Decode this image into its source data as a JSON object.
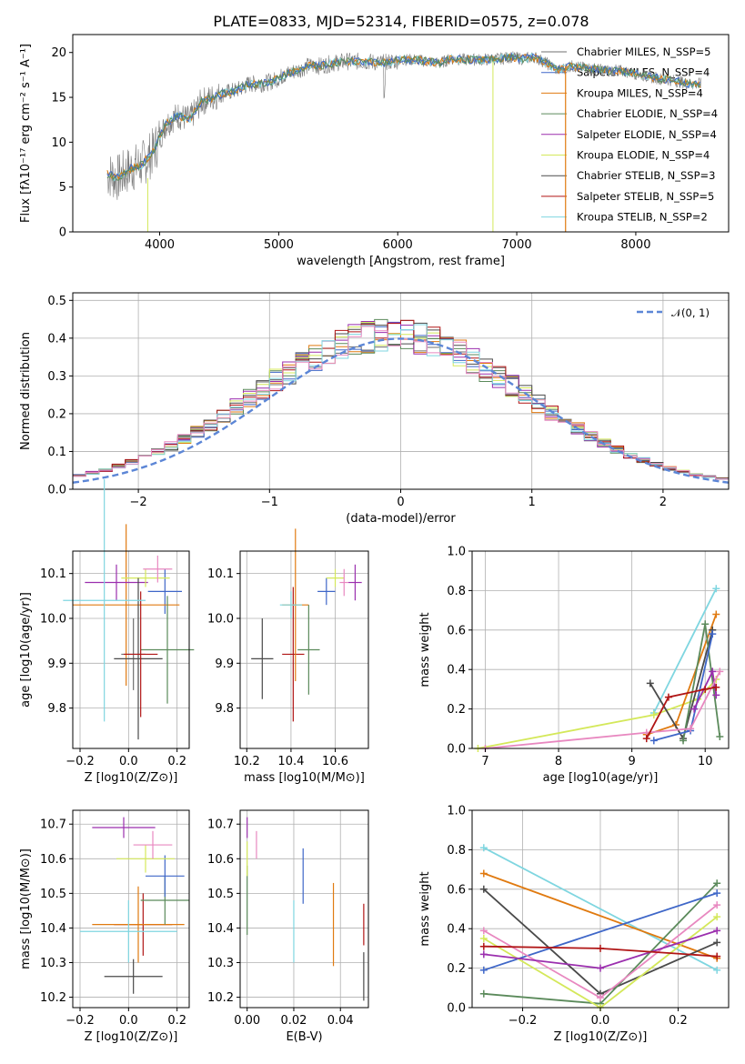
{
  "title": "PLATE=0833, MJD=52314, FIBERID=0575, z=0.078",
  "colors": {
    "Chabrier MILES": "#6f6f6f",
    "Salpeter MILES": "#3f67c8",
    "Kroupa MILES": "#e07a10",
    "Chabrier ELODIE": "#5b8a5b",
    "Salpeter ELODIE": "#9b2fae",
    "Kroupa ELODIE": "#d4e85a",
    "Chabrier STELIB": "#4a4a4a",
    "Salpeter STELIB": "#b01515",
    "Kroupa STELIB": "#7fd6e0",
    "pink": "#e888c0"
  },
  "chart_data": [
    {
      "type": "line",
      "title": "PLATE=0833, MJD=52314, FIBERID=0575, z=0.078",
      "xlabel": "wavelength [Angstrom, rest frame]",
      "ylabel": "Flux [fλ10⁻¹⁷ erg cm⁻² s⁻¹ A⁻¹]",
      "xlim": [
        3270,
        8780
      ],
      "ylim": [
        0,
        22
      ],
      "xticks": [
        "4000",
        "5000",
        "6000",
        "7000",
        "8000"
      ],
      "yticks": [
        "0",
        "5",
        "10",
        "15",
        "20"
      ],
      "legend": "right",
      "legend_entries": [
        "Chabrier MILES, N_SSP=5",
        "Salpeter MILES, N_SSP=4",
        "Kroupa MILES, N_SSP=4",
        "Chabrier ELODIE, N_SSP=4",
        "Salpeter ELODIE, N_SSP=4",
        "Kroupa ELODIE, N_SSP=4",
        "Chabrier STELIB, N_SSP=3",
        "Salpeter STELIB, N_SSP=5",
        "Kroupa STELIB, N_SSP=2"
      ],
      "spectrum": {
        "x": [
          3550,
          3650,
          3750,
          3850,
          3950,
          4050,
          4150,
          4250,
          4350,
          4450,
          4550,
          4650,
          4750,
          4850,
          4950,
          5050,
          5150,
          5250,
          5350,
          5450,
          5550,
          5650,
          5750,
          5850,
          5950,
          6050,
          6150,
          6250,
          6350,
          6450,
          6550,
          6650,
          6750,
          6850,
          6950,
          7050,
          7150,
          7250,
          7350,
          7450,
          7550,
          7650,
          7750,
          7850,
          7950,
          8050,
          8150,
          8250,
          8350,
          8450,
          8550
        ],
        "y": [
          6.5,
          6.0,
          7.0,
          7.5,
          9.0,
          12.0,
          13.0,
          12.5,
          14.5,
          15.0,
          15.5,
          15.8,
          16.5,
          16.5,
          16.8,
          17.5,
          18.0,
          18.5,
          18.5,
          18.8,
          19.0,
          19.0,
          19.0,
          18.8,
          19.0,
          19.2,
          19.2,
          19.0,
          18.8,
          19.3,
          19.2,
          19.2,
          19.2,
          19.3,
          19.5,
          19.3,
          19.5,
          18.8,
          18.0,
          18.5,
          18.3,
          18.2,
          18.0,
          18.0,
          17.8,
          17.5,
          17.2,
          17.0,
          16.8,
          16.5,
          16.5
        ]
      }
    },
    {
      "type": "bar",
      "xlabel": "(data-model)/error",
      "ylabel": "Normed distribution",
      "xlim": [
        -2.5,
        2.5
      ],
      "ylim": [
        0,
        0.52
      ],
      "xticks": [
        "−2",
        "−1",
        "0",
        "1",
        "2"
      ],
      "yticks": [
        "0.0",
        "0.1",
        "0.2",
        "0.3",
        "0.4",
        "0.5"
      ],
      "legend": "top-right",
      "reference_label": "𝒩(0, 1)",
      "bin_width": 0.1
    },
    {
      "type": "scatter",
      "xlabel": "Z [log10(Z/Z⊙)]",
      "ylabel": "age [log10(age/yr)]",
      "xlim": [
        -0.23,
        0.25
      ],
      "ylim": [
        9.71,
        10.15
      ],
      "xticks": [
        "−0.2",
        "0.0",
        "0.2"
      ],
      "yticks": [
        "9.8",
        "9.9",
        "10.0",
        "10.1"
      ],
      "points": [
        {
          "series": "Chabrier MILES",
          "x": 0.02,
          "xerr": 0.05,
          "y": 9.92,
          "yerr": 0.08
        },
        {
          "series": "Salpeter MILES",
          "x": 0.15,
          "xerr": 0.07,
          "y": 10.06,
          "yerr": 0.05
        },
        {
          "series": "Kroupa MILES",
          "x": -0.01,
          "xerr": 0.22,
          "y": 10.03,
          "yerr": 0.18
        },
        {
          "series": "Chabrier ELODIE",
          "x": 0.16,
          "xerr": 0.11,
          "y": 9.93,
          "yerr": 0.12
        },
        {
          "series": "Salpeter ELODIE",
          "x": -0.05,
          "xerr": 0.13,
          "y": 10.08,
          "yerr": 0.04
        },
        {
          "series": "Kroupa ELODIE",
          "x": 0.07,
          "xerr": 0.1,
          "y": 10.09,
          "yerr": 0.02
        },
        {
          "series": "Chabrier STELIB",
          "x": 0.04,
          "xerr": 0.1,
          "y": 9.91,
          "yerr": 0.18
        },
        {
          "series": "Salpeter STELIB",
          "x": 0.05,
          "xerr": 0.07,
          "y": 9.92,
          "yerr": 0.14
        },
        {
          "series": "Kroupa STELIB",
          "x": -0.1,
          "xerr": 0.17,
          "y": 10.04,
          "yerr": 0.27
        },
        {
          "series": "pink",
          "x": 0.12,
          "xerr": 0.06,
          "y": 10.11,
          "yerr": 0.03
        }
      ]
    },
    {
      "type": "scatter",
      "xlabel": "mass [log10(M/M⊙)]",
      "ylabel": "",
      "xlim": [
        10.17,
        10.75
      ],
      "ylim": [
        9.71,
        10.15
      ],
      "xticks": [
        "10.2",
        "10.4",
        "10.6"
      ],
      "yticks": [
        "9.8",
        "9.9",
        "10.0",
        "10.1"
      ],
      "points": [
        {
          "series": "Chabrier STELIB",
          "x": 10.27,
          "xerr": 0.05,
          "y": 9.91,
          "yerr": 0.09
        },
        {
          "series": "Salpeter STELIB",
          "x": 10.41,
          "xerr": 0.05,
          "y": 9.92,
          "yerr": 0.15
        },
        {
          "series": "Kroupa MILES",
          "x": 10.42,
          "xerr": 0.06,
          "y": 10.03,
          "yerr": 0.17
        },
        {
          "series": "Chabrier ELODIE",
          "x": 10.48,
          "xerr": 0.05,
          "y": 9.93,
          "yerr": 0.1
        },
        {
          "series": "Kroupa STELIB",
          "x": 10.4,
          "xerr": 0.05,
          "y": 10.03,
          "yerr": 0.03
        },
        {
          "series": "Salpeter MILES",
          "x": 10.56,
          "xerr": 0.04,
          "y": 10.06,
          "yerr": 0.03
        },
        {
          "series": "Kroupa ELODIE",
          "x": 10.6,
          "xerr": 0.04,
          "y": 10.09,
          "yerr": 0.02
        },
        {
          "series": "pink",
          "x": 10.64,
          "xerr": 0.02,
          "y": 10.08,
          "yerr": 0.03
        },
        {
          "series": "Salpeter ELODIE",
          "x": 10.69,
          "xerr": 0.03,
          "y": 10.08,
          "yerr": 0.04
        }
      ]
    },
    {
      "type": "line",
      "xlabel": "age [log10(age/yr)]",
      "ylabel": "mass weight",
      "xlim": [
        6.82,
        10.32
      ],
      "ylim": [
        0,
        1
      ],
      "xticks": [
        "7",
        "8",
        "9",
        "10"
      ],
      "yticks": [
        "0.0",
        "0.2",
        "0.4",
        "0.6",
        "0.8",
        "1.0"
      ],
      "series": [
        {
          "name": "Kroupa STELIB",
          "x": [
            9.3,
            10.15
          ],
          "y": [
            0.18,
            0.81
          ]
        },
        {
          "name": "Kroupa ELODIE",
          "x": [
            6.9,
            9.3,
            9.9,
            10.15
          ],
          "y": [
            0.0,
            0.17,
            0.25,
            0.35
          ]
        },
        {
          "name": "Kroupa MILES",
          "x": [
            9.2,
            9.6,
            10.15
          ],
          "y": [
            0.07,
            0.12,
            0.68
          ]
        },
        {
          "name": "Chabrier STELIB",
          "x": [
            9.25,
            9.7,
            10.1
          ],
          "y": [
            0.33,
            0.05,
            0.6
          ]
        },
        {
          "name": "Chabrier ELODIE",
          "x": [
            9.7,
            10.0,
            10.2
          ],
          "y": [
            0.04,
            0.63,
            0.06
          ]
        },
        {
          "name": "Salpeter MILES",
          "x": [
            9.3,
            9.8,
            10.1
          ],
          "y": [
            0.04,
            0.09,
            0.58
          ]
        },
        {
          "name": "Salpeter ELODIE",
          "x": [
            9.85,
            10.1,
            10.15
          ],
          "y": [
            0.2,
            0.39,
            0.27
          ]
        },
        {
          "name": "pink",
          "x": [
            7.0,
            9.2,
            9.8,
            10.2
          ],
          "y": [
            0.0,
            0.08,
            0.1,
            0.39
          ]
        },
        {
          "name": "Salpeter STELIB",
          "x": [
            9.2,
            9.5,
            10.0,
            10.15
          ],
          "y": [
            0.05,
            0.26,
            0.3,
            0.31
          ]
        }
      ]
    },
    {
      "type": "scatter",
      "xlabel": "Z [log10(Z/Z⊙)]",
      "ylabel": "mass [log10(M/M⊙)]",
      "xlim": [
        -0.23,
        0.25
      ],
      "ylim": [
        10.17,
        10.74
      ],
      "xticks": [
        "−0.2",
        "0.0",
        "0.2"
      ],
      "yticks": [
        "10.2",
        "10.3",
        "10.4",
        "10.5",
        "10.6",
        "10.7"
      ],
      "points": [
        {
          "series": "Chabrier STELIB",
          "x": 0.02,
          "xerr": 0.12,
          "y": 10.26,
          "yerr": 0.05
        },
        {
          "series": "Salpeter STELIB",
          "x": 0.06,
          "xerr": 0.12,
          "y": 10.41,
          "yerr": 0.09
        },
        {
          "series": "Kroupa MILES",
          "x": 0.04,
          "xerr": 0.19,
          "y": 10.41,
          "yerr": 0.11
        },
        {
          "series": "Kroupa STELIB",
          "x": 0.0,
          "xerr": 0.2,
          "y": 10.39,
          "yerr": 0.09
        },
        {
          "series": "Chabrier ELODIE",
          "x": 0.15,
          "xerr": 0.1,
          "y": 10.48,
          "yerr": 0.07
        },
        {
          "series": "Salpeter MILES",
          "x": 0.15,
          "xerr": 0.08,
          "y": 10.55,
          "yerr": 0.06
        },
        {
          "series": "Kroupa ELODIE",
          "x": 0.07,
          "xerr": 0.12,
          "y": 10.6,
          "yerr": 0.04
        },
        {
          "series": "pink",
          "x": 0.1,
          "xerr": 0.08,
          "y": 10.64,
          "yerr": 0.04
        },
        {
          "series": "Salpeter ELODIE",
          "x": -0.02,
          "xerr": 0.13,
          "y": 10.69,
          "yerr": 0.03
        }
      ]
    },
    {
      "type": "scatter",
      "xlabel": "E(B-V)",
      "ylabel": "",
      "xlim": [
        -0.003,
        0.052
      ],
      "ylim": [
        10.17,
        10.74
      ],
      "xticks": [
        "0.00",
        "0.02",
        "0.04"
      ],
      "yticks": [
        "10.2",
        "10.3",
        "10.4",
        "10.5",
        "10.6",
        "10.7"
      ],
      "points": [
        {
          "series": "Chabrier STELIB",
          "x": 0.05,
          "y": 10.26,
          "yerr": 0.07
        },
        {
          "series": "Salpeter STELIB",
          "x": 0.05,
          "y": 10.41,
          "yerr": 0.06
        },
        {
          "series": "Kroupa MILES",
          "x": 0.037,
          "y": 10.41,
          "yerr": 0.12
        },
        {
          "series": "Kroupa STELIB",
          "x": 0.02,
          "y": 10.39,
          "yerr": 0.09
        },
        {
          "series": "Chabrier ELODIE",
          "x": 0.0,
          "y": 10.48,
          "yerr": 0.1
        },
        {
          "series": "Salpeter MILES",
          "x": 0.024,
          "y": 10.55,
          "yerr": 0.08
        },
        {
          "series": "Kroupa ELODIE",
          "x": 0.0,
          "y": 10.6,
          "yerr": 0.05
        },
        {
          "series": "pink",
          "x": 0.004,
          "y": 10.64,
          "yerr": 0.04
        },
        {
          "series": "Salpeter ELODIE",
          "x": 0.0,
          "y": 10.69,
          "yerr": 0.03
        }
      ]
    },
    {
      "type": "line",
      "xlabel": "Z [log10(Z/Z⊙)]",
      "ylabel": "mass weight",
      "xlim": [
        -0.33,
        0.33
      ],
      "ylim": [
        0,
        1
      ],
      "xticks": [
        "−0.2",
        "0.0",
        "0.2"
      ],
      "yticks": [
        "0.0",
        "0.2",
        "0.4",
        "0.6",
        "0.8",
        "1.0"
      ],
      "series": [
        {
          "name": "Kroupa STELIB",
          "x": [
            -0.3,
            0.3
          ],
          "y": [
            0.81,
            0.19
          ]
        },
        {
          "name": "Kroupa MILES",
          "x": [
            -0.3,
            0.3
          ],
          "y": [
            0.68,
            0.25
          ]
        },
        {
          "name": "Chabrier STELIB",
          "x": [
            -0.3,
            0.0,
            0.3
          ],
          "y": [
            0.6,
            0.07,
            0.33
          ]
        },
        {
          "name": "Chabrier ELODIE",
          "x": [
            -0.3,
            0.0,
            0.3
          ],
          "y": [
            0.07,
            0.02,
            0.63
          ]
        },
        {
          "name": "Salpeter MILES",
          "x": [
            -0.3,
            0.3
          ],
          "y": [
            0.19,
            0.58
          ]
        },
        {
          "name": "pink",
          "x": [
            -0.3,
            0.0,
            0.3
          ],
          "y": [
            0.39,
            0.05,
            0.52
          ]
        },
        {
          "name": "Kroupa ELODIE",
          "x": [
            -0.3,
            0.0,
            0.3
          ],
          "y": [
            0.35,
            0.0,
            0.46
          ]
        },
        {
          "name": "Salpeter ELODIE",
          "x": [
            -0.3,
            0.0,
            0.3
          ],
          "y": [
            0.27,
            0.2,
            0.39
          ]
        },
        {
          "name": "Salpeter STELIB",
          "x": [
            -0.3,
            0.0,
            0.3
          ],
          "y": [
            0.31,
            0.3,
            0.26
          ]
        }
      ]
    }
  ]
}
